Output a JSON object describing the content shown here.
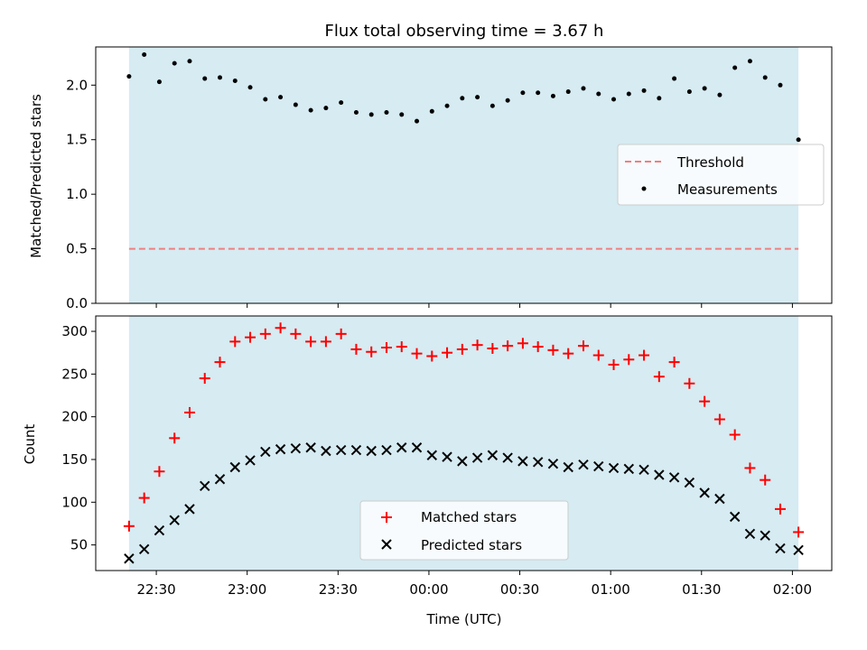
{
  "chart_data": {
    "title": "Flux total observing time = 3.67 h",
    "xlabel": "Time (UTC)",
    "x_ticks": [
      "22:30",
      "23:00",
      "23:30",
      "00:00",
      "00:30",
      "01:00",
      "01:30",
      "02:00"
    ],
    "x_tick_minutes": [
      1350,
      1380,
      1410,
      1440,
      1470,
      1500,
      1530,
      1560
    ],
    "xlim_minutes": [
      1330,
      1573
    ],
    "shaded_span_minutes": [
      1341,
      1562
    ],
    "x_minutes": [
      1341,
      1346,
      1351,
      1356,
      1361,
      1366,
      1371,
      1376,
      1381,
      1386,
      1391,
      1396,
      1401,
      1406,
      1411,
      1416,
      1421,
      1426,
      1431,
      1436,
      1441,
      1446,
      1451,
      1456,
      1461,
      1466,
      1471,
      1476,
      1481,
      1486,
      1491,
      1496,
      1501,
      1506,
      1511,
      1516,
      1521,
      1526,
      1531,
      1536,
      1541,
      1546,
      1551,
      1556,
      1562
    ],
    "panels": [
      {
        "type": "scatter",
        "ylabel": "Matched/Predicted stars",
        "ylim": [
          0,
          2.35
        ],
        "y_ticks": [
          "0.0",
          "0.5",
          "1.0",
          "1.5",
          "2.0"
        ],
        "y_tick_values": [
          0,
          0.5,
          1.0,
          1.5,
          2.0
        ],
        "threshold": 0.5,
        "legend_position": "center-right",
        "series": [
          {
            "name": "Threshold",
            "kind": "dashed-line",
            "color": "#f07f7f"
          },
          {
            "name": "Measurements",
            "kind": "dot",
            "color": "#000000",
            "values": [
              2.08,
              2.28,
              2.03,
              2.2,
              2.22,
              2.06,
              2.07,
              2.04,
              1.98,
              1.87,
              1.89,
              1.82,
              1.77,
              1.79,
              1.84,
              1.75,
              1.73,
              1.75,
              1.73,
              1.67,
              1.76,
              1.81,
              1.88,
              1.89,
              1.81,
              1.86,
              1.93,
              1.93,
              1.9,
              1.94,
              1.97,
              1.92,
              1.87,
              1.92,
              1.95,
              1.88,
              2.06,
              1.94,
              1.97,
              1.91,
              2.16,
              2.22,
              2.07,
              2.0,
              1.5
            ]
          }
        ]
      },
      {
        "type": "scatter",
        "ylabel": "Count",
        "ylim": [
          20,
          318
        ],
        "y_ticks": [
          "50",
          "100",
          "150",
          "200",
          "250",
          "300"
        ],
        "y_tick_values": [
          50,
          100,
          150,
          200,
          250,
          300
        ],
        "legend_position": "bottom-center",
        "series": [
          {
            "name": "Matched stars",
            "marker": "+",
            "color": "#ff0000",
            "values": [
              72,
              105,
              136,
              175,
              205,
              245,
              264,
              288,
              293,
              297,
              304,
              297,
              288,
              288,
              297,
              279,
              276,
              281,
              282,
              274,
              271,
              275,
              279,
              284,
              280,
              283,
              286,
              282,
              278,
              274,
              283,
              272,
              261,
              267,
              272,
              247,
              264,
              239,
              218,
              197,
              179,
              140,
              126,
              92,
              65
            ]
          },
          {
            "name": "Predicted stars",
            "marker": "x",
            "color": "#000000",
            "values": [
              34,
              45,
              67,
              79,
              92,
              119,
              127,
              141,
              149,
              159,
              162,
              163,
              164,
              160,
              161,
              161,
              160,
              161,
              164,
              164,
              155,
              153,
              148,
              152,
              155,
              152,
              148,
              147,
              145,
              141,
              144,
              142,
              140,
              139,
              138,
              132,
              129,
              123,
              111,
              104,
              83,
              63,
              61,
              46,
              44
            ]
          }
        ]
      }
    ]
  }
}
